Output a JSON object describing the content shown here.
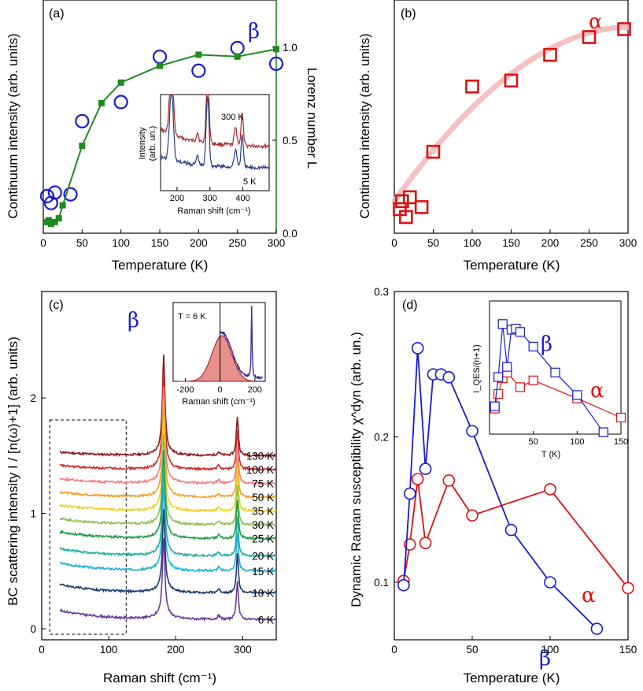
{
  "colors": {
    "blue": "#1a1ad6",
    "green": "#1f8a1f",
    "red": "#e01010",
    "pink": "#f4b6b6",
    "inset_red": "#b02828",
    "inset_blue": "#283c8c"
  },
  "chart_data": [
    {
      "panel": "(a)",
      "type": "scatter",
      "xlabel": "Temperature (K)",
      "ylabel": "Continuum intensity (arb. units)",
      "y2label": "Lorenz number L",
      "xlim": [
        0,
        300
      ],
      "y2lim": [
        0,
        1.1
      ],
      "xticks": [
        "0",
        "50",
        "100",
        "150",
        "200",
        "250",
        "300"
      ],
      "y2ticks": [
        "0.0",
        "0.5",
        "1.0"
      ],
      "series_label": "β",
      "series": [
        {
          "marker": "open-circle",
          "axis": "left-arbitrary-0-1",
          "x": [
            5,
            10,
            15,
            35,
            50,
            100,
            150,
            200,
            250,
            300
          ],
          "y": [
            0.15,
            0.11,
            0.17,
            0.16,
            0.58,
            0.69,
            0.95,
            0.87,
            1.0,
            0.91
          ]
        },
        {
          "name": "Lorenz number L",
          "marker": "filled-square",
          "axis": "right",
          "x": [
            5,
            7,
            10,
            15,
            20,
            25,
            50,
            75,
            100,
            150,
            200,
            250,
            300
          ],
          "y": [
            0.06,
            0.07,
            0.05,
            0.06,
            0.08,
            0.15,
            0.47,
            0.7,
            0.81,
            0.9,
            0.96,
            0.95,
            0.99
          ]
        }
      ],
      "inset": {
        "xlabel": "Raman shift (cm⁻¹)",
        "ylabel_line1": "Intensity",
        "ylabel_line2": "(arb. un.)",
        "xticks": [
          "200",
          "300",
          "400"
        ],
        "xlim": [
          150,
          480
        ],
        "labels": [
          "300 K",
          "5 K"
        ]
      }
    },
    {
      "panel": "(b)",
      "type": "scatter",
      "xlabel": "Temperature (K)",
      "ylabel": "Continuum intensity (arb. units)",
      "xlim": [
        0,
        300
      ],
      "xticks": [
        "0",
        "50",
        "100",
        "150",
        "200",
        "250",
        "300"
      ],
      "series_label": "α",
      "series": [
        {
          "marker": "open-square",
          "x": [
            7,
            10,
            15,
            20,
            35,
            50,
            100,
            150,
            200,
            250,
            295
          ],
          "y": [
            0.09,
            0.13,
            0.05,
            0.15,
            0.1,
            0.38,
            0.71,
            0.74,
            0.87,
            0.96,
            1.0
          ]
        }
      ],
      "trend": {
        "x": [
          0,
          100,
          200,
          300
        ],
        "y": [
          0.13,
          0.58,
          0.85,
          1.01
        ]
      }
    },
    {
      "panel": "(c)",
      "type": "line",
      "xlabel": "Raman shift (cm⁻¹)",
      "ylabel": "BC scattering intensity I / [n(ω)+1] (arb. units)",
      "xlim": [
        0,
        350
      ],
      "ylim": [
        -0.1,
        2.85
      ],
      "xticks": [
        "0",
        "100",
        "200",
        "300"
      ],
      "yticks": [
        "0",
        "1",
        "2"
      ],
      "series_label": "β",
      "series": [
        {
          "name": "130 K",
          "offset": 1.5,
          "color": "#8b1a1a"
        },
        {
          "name": "100 K",
          "offset": 1.38,
          "color": "#d42a2a"
        },
        {
          "name": "75 K",
          "offset": 1.26,
          "color": "#f08080"
        },
        {
          "name": "50 K",
          "offset": 1.14,
          "color": "#f0a030"
        },
        {
          "name": "35 K",
          "offset": 1.02,
          "color": "#f0d020"
        },
        {
          "name": "30 K",
          "offset": 0.9,
          "color": "#90c050"
        },
        {
          "name": "25 K",
          "offset": 0.78,
          "color": "#20a040"
        },
        {
          "name": "20 K",
          "offset": 0.63,
          "color": "#20b0a0"
        },
        {
          "name": "15 K",
          "offset": 0.5,
          "color": "#20b0d8"
        },
        {
          "name": "10 K",
          "offset": 0.31,
          "color": "#1a3a70"
        },
        {
          "name": "6 K",
          "offset": 0.08,
          "color": "#6a3a9a"
        }
      ],
      "inset": {
        "label": "T = 6 K",
        "xlabel": "Raman shift (cm⁻¹)",
        "xticks": [
          "-200",
          "0",
          "200"
        ],
        "xlim": [
          -270,
          260
        ]
      }
    },
    {
      "panel": "(d)",
      "type": "line",
      "xlabel": "Temperature (K)",
      "ylabel": "Dynamic Raman susceptibility χ^dyn (arb. un.)",
      "xlim": [
        0,
        150
      ],
      "ylim": [
        0.065,
        0.3
      ],
      "xticks": [
        "0",
        "50",
        "100",
        "150"
      ],
      "yticks": [
        "0.1",
        "0.2",
        "0.3"
      ],
      "series": [
        {
          "name": "α",
          "color": "#e01010",
          "x": [
            6,
            10,
            15,
            20,
            35,
            50,
            100,
            150
          ],
          "y": [
            0.101,
            0.126,
            0.171,
            0.127,
            0.17,
            0.146,
            0.164,
            0.096
          ]
        },
        {
          "name": "β",
          "color": "#1a1ad6",
          "x": [
            6,
            10,
            15,
            20,
            25,
            30,
            35,
            50,
            75,
            100,
            130
          ],
          "y": [
            0.098,
            0.161,
            0.261,
            0.178,
            0.243,
            0.243,
            0.241,
            0.204,
            0.136,
            0.1,
            0.068
          ]
        }
      ],
      "inset": {
        "xlabel": "T (K)",
        "ylabel": "I_QES/(n+1)",
        "xlim": [
          0,
          150
        ],
        "xticks": [
          "50",
          "100",
          "150"
        ],
        "series": [
          {
            "name": "α",
            "color": "#e01010",
            "x": [
              6,
              10,
              15,
              20,
              35,
              50,
              100,
              150
            ],
            "y": [
              0.15,
              0.28,
              0.42,
              0.47,
              0.34,
              0.4,
              0.24,
              0.07
            ]
          },
          {
            "name": "β",
            "color": "#1a1ad6",
            "x": [
              6,
              10,
              15,
              20,
              25,
              30,
              35,
              50,
              75,
              100,
              130
            ],
            "y": [
              0.17,
              0.43,
              0.9,
              0.52,
              0.85,
              0.86,
              0.83,
              0.7,
              0.47,
              0.27,
              -0.06
            ]
          }
        ]
      }
    }
  ]
}
